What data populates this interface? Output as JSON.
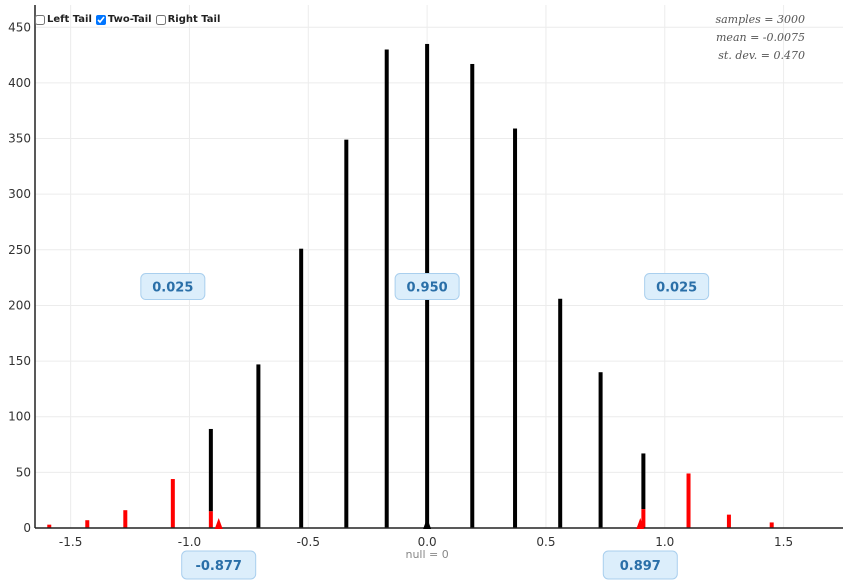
{
  "controls": {
    "left_tail": "Left Tail",
    "two_tail": "Two-Tail",
    "right_tail": "Right Tail",
    "left_tail_checked": false,
    "two_tail_checked": true,
    "right_tail_checked": false
  },
  "stats": {
    "samples": "samples = 3000",
    "mean": "mean = -0.0075",
    "sd": "st. dev. = 0.470"
  },
  "colors": {
    "bar": "#000000",
    "tail": "#ff0000",
    "marker": "#ff0000",
    "null_marker": "#000000"
  },
  "chart_data": {
    "type": "bar",
    "xlim": [
      -1.65,
      1.75
    ],
    "ylim": [
      0,
      470
    ],
    "xticks": [
      -1.5,
      -1.0,
      -0.5,
      0.0,
      0.5,
      1.0,
      1.5
    ],
    "xtick_labels": [
      "-1.5",
      "-1.0",
      "-0.5",
      "0.0",
      "0.5",
      "1.0",
      "1.5"
    ],
    "yticks": [
      0,
      50,
      100,
      150,
      200,
      250,
      300,
      350,
      400,
      450
    ],
    "ytick_labels": [
      "0",
      "50",
      "100",
      "150",
      "200",
      "250",
      "300",
      "350",
      "400",
      "450"
    ],
    "grid": true,
    "series": [
      {
        "x": [
          -1.59,
          -1.43,
          -1.27,
          -1.07,
          -0.91,
          -0.71,
          -0.53,
          -0.34,
          -0.17,
          0.0,
          0.19,
          0.37,
          0.56,
          0.73,
          0.91,
          1.1,
          1.27,
          1.45
        ],
        "values": [
          3,
          7,
          16,
          44,
          89,
          147,
          251,
          349,
          430,
          435,
          417,
          359,
          206,
          140,
          67,
          49,
          12,
          5
        ],
        "tail_values": [
          3,
          7,
          16,
          44,
          15,
          0,
          0,
          0,
          0,
          0,
          0,
          0,
          0,
          0,
          17,
          49,
          12,
          5
        ]
      }
    ],
    "proportions": [
      {
        "x": -1.07,
        "y": 217,
        "label": "0.025"
      },
      {
        "x": 0.0,
        "y": 217,
        "label": "0.950"
      },
      {
        "x": 1.05,
        "y": 217,
        "label": "0.025"
      }
    ],
    "critical_values": [
      {
        "x": -0.877,
        "label": "-0.877"
      },
      {
        "x": 0.897,
        "label": "0.897"
      }
    ],
    "null_value": 0,
    "null_label": "null = 0"
  }
}
